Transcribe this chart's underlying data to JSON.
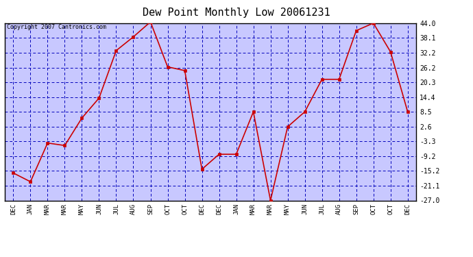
{
  "title": "Dew Point Monthly Low 20061231",
  "copyright": "Copyright 2007 Cantronics.com",
  "x_labels": [
    "DEC",
    "JAN",
    "MAR",
    "MAR",
    "MAY",
    "JUN",
    "JUL",
    "AUG",
    "SEP",
    "OCT",
    "OCT",
    "DEC",
    "DEC",
    "JAN",
    "MAR",
    "MAR",
    "MAY",
    "JUN",
    "JUL",
    "AUG",
    "SEP",
    "OCT",
    "OCT",
    "DEC"
  ],
  "y_values": [
    -16.0,
    -19.5,
    -4.0,
    -5.0,
    6.0,
    14.0,
    33.0,
    38.5,
    44.5,
    26.5,
    25.0,
    -14.5,
    -8.5,
    -8.5,
    8.5,
    -27.0,
    2.5,
    8.5,
    21.5,
    21.5,
    41.0,
    44.0,
    32.5,
    8.5
  ],
  "y_ticks": [
    44.0,
    38.1,
    32.2,
    26.2,
    20.3,
    14.4,
    8.5,
    2.6,
    -3.3,
    -9.2,
    -15.2,
    -21.1,
    -27.0
  ],
  "fig_bg_color": "#ffffff",
  "plot_bg_color": "#c8c8ff",
  "line_color": "#cc0000",
  "marker_color": "#cc0000",
  "grid_color": "#0000bb",
  "title_color": "#000000",
  "border_color": "#000000",
  "title_fontsize": 11,
  "copyright_fontsize": 6,
  "tick_fontsize": 7,
  "x_tick_fontsize": 6.5
}
